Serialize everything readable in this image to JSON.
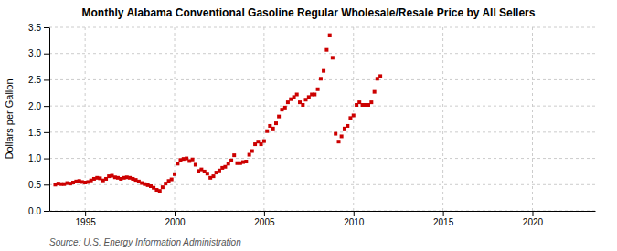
{
  "chart_data": {
    "type": "scatter",
    "title": "Monthly Alabama Conventional Gasoline Regular Wholesale/Resale Price by All Sellers",
    "ylabel": "Dollars per Gallon",
    "annotations": [
      "Source: U.S. Energy Information Administration"
    ],
    "color": "#cc0000",
    "marker": "square",
    "grid": true,
    "xlim": [
      1993.0,
      2023.5
    ],
    "ylim": [
      0.0,
      3.5
    ],
    "xticks": [
      1995,
      2000,
      2005,
      2010,
      2015,
      2020
    ],
    "yticks": [
      {
        "value": 0.0,
        "label": "0.0"
      },
      0.5,
      {
        "value": 1.0,
        "label": "1.0"
      },
      1.5,
      {
        "value": 2.0,
        "label": "2.0"
      },
      2.5,
      {
        "value": 3.0,
        "label": "3.0"
      },
      3.5
    ],
    "x": [
      1993.33,
      1993.5,
      1993.67,
      1993.83,
      1994.0,
      1994.17,
      1994.33,
      1994.5,
      1994.67,
      1994.83,
      1995.0,
      1995.17,
      1995.33,
      1995.5,
      1995.67,
      1995.83,
      1996.0,
      1996.17,
      1996.33,
      1996.5,
      1996.67,
      1996.83,
      1997.0,
      1997.17,
      1997.33,
      1997.5,
      1997.67,
      1997.83,
      1998.0,
      1998.17,
      1998.33,
      1998.5,
      1998.67,
      1998.83,
      1999.0,
      1999.17,
      1999.33,
      1999.5,
      1999.67,
      1999.83,
      2000.0,
      2000.17,
      2000.33,
      2000.5,
      2000.67,
      2000.83,
      2001.0,
      2001.17,
      2001.33,
      2001.5,
      2001.67,
      2001.83,
      2002.0,
      2002.17,
      2002.33,
      2002.5,
      2002.67,
      2002.83,
      2003.0,
      2003.17,
      2003.33,
      2003.5,
      2003.67,
      2003.83,
      2004.0,
      2004.17,
      2004.33,
      2004.5,
      2004.67,
      2004.83,
      2005.0,
      2005.17,
      2005.33,
      2005.5,
      2005.67,
      2005.83,
      2006.0,
      2006.17,
      2006.33,
      2006.5,
      2006.67,
      2006.83,
      2007.0,
      2007.17,
      2007.33,
      2007.5,
      2007.67,
      2007.83,
      2008.0,
      2008.17,
      2008.33,
      2008.5,
      2008.67,
      2008.83,
      2009.0,
      2009.17,
      2009.33,
      2009.5,
      2009.67,
      2009.83,
      2010.0,
      2010.17,
      2010.33,
      2010.5,
      2010.67,
      2010.83,
      2011.0,
      2011.17,
      2011.33,
      2011.5
    ],
    "values": [
      0.5,
      0.52,
      0.51,
      0.51,
      0.53,
      0.52,
      0.54,
      0.56,
      0.57,
      0.55,
      0.54,
      0.55,
      0.58,
      0.61,
      0.63,
      0.62,
      0.58,
      0.61,
      0.66,
      0.67,
      0.64,
      0.63,
      0.61,
      0.63,
      0.64,
      0.63,
      0.61,
      0.59,
      0.56,
      0.53,
      0.51,
      0.49,
      0.47,
      0.44,
      0.4,
      0.38,
      0.45,
      0.52,
      0.57,
      0.6,
      0.7,
      0.9,
      0.97,
      0.99,
      1.0,
      0.95,
      0.98,
      0.88,
      0.76,
      0.79,
      0.75,
      0.71,
      0.63,
      0.66,
      0.73,
      0.77,
      0.82,
      0.84,
      0.9,
      0.96,
      1.06,
      0.91,
      0.91,
      0.93,
      0.94,
      1.07,
      1.14,
      1.27,
      1.32,
      1.27,
      1.33,
      1.52,
      1.62,
      1.57,
      1.67,
      1.8,
      1.93,
      1.97,
      2.07,
      2.13,
      2.17,
      2.22,
      2.07,
      2.02,
      2.12,
      2.17,
      2.22,
      2.22,
      2.32,
      2.52,
      2.67,
      3.07,
      3.35,
      2.92,
      1.47,
      1.32,
      1.42,
      1.57,
      1.62,
      1.77,
      1.82,
      2.02,
      2.07,
      2.02,
      2.02,
      2.02,
      2.07,
      2.27,
      2.52,
      2.57
    ]
  }
}
